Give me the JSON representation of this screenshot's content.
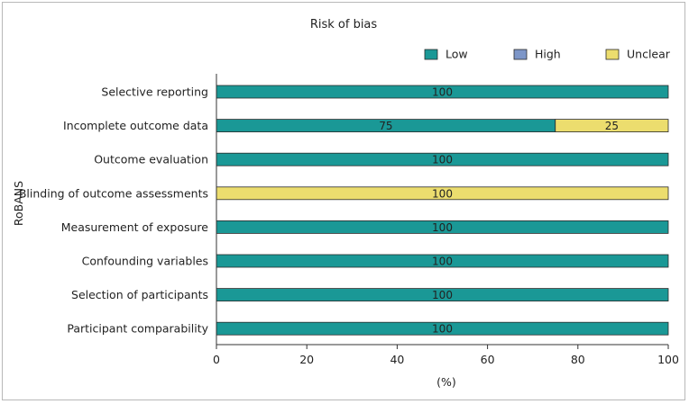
{
  "chart_data": {
    "type": "bar",
    "orientation": "horizontal",
    "stacked": true,
    "title": "Risk of bias",
    "xlabel": "(%)",
    "ylabel": "RoBANS",
    "xlim": [
      0,
      100
    ],
    "xticks": [
      0,
      20,
      40,
      60,
      80,
      100
    ],
    "grid": false,
    "legend_position": "top-right",
    "categories": [
      "Selective reporting",
      "Incomplete outcome data",
      "Outcome evaluation",
      "Blinding of outcome assessments",
      "Measurement of exposure",
      "Confounding variables",
      "Selection of participants",
      "Participant comparability"
    ],
    "series": [
      {
        "name": "Low",
        "color": "#1a9896",
        "values": [
          100,
          75,
          100,
          0,
          100,
          100,
          100,
          100
        ]
      },
      {
        "name": "High",
        "color": "#7d96c8",
        "values": [
          0,
          0,
          0,
          0,
          0,
          0,
          0,
          0
        ]
      },
      {
        "name": "Unclear",
        "color": "#ecdd6e",
        "values": [
          0,
          25,
          0,
          100,
          0,
          0,
          0,
          0
        ]
      }
    ]
  }
}
